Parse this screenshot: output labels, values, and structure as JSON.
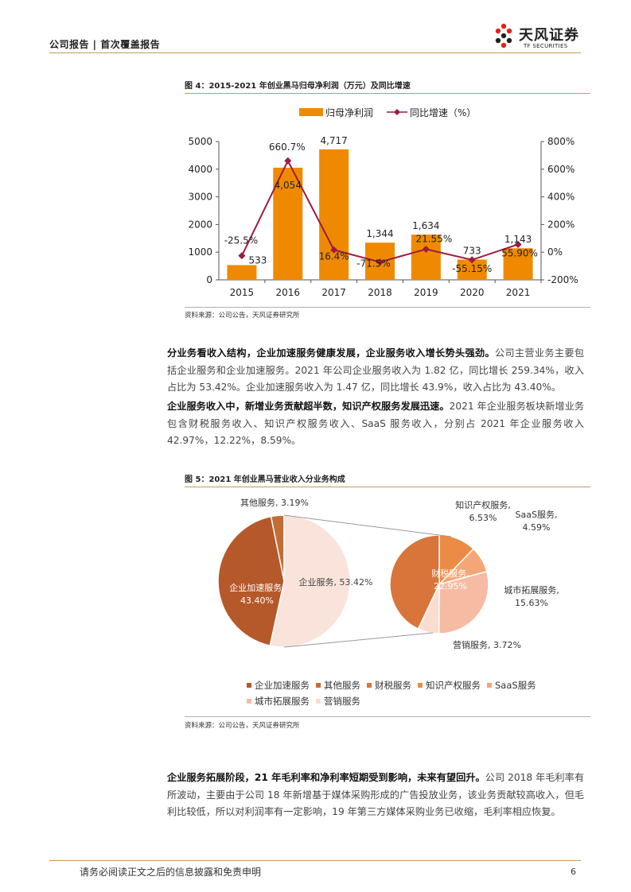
{
  "header": {
    "left": "公司报告 | 首次覆盖报告",
    "logo_cn": "天风证券",
    "logo_en": "TF SECURITIES"
  },
  "figure4": {
    "title": "图 4：2015-2021 年创业黑马归母净利润（万元）及同比增速",
    "source": "资料来源：公司公告，天风证券研究所"
  },
  "para1": {
    "bold": "分业务看收入结构，企业加速服务健康发展，企业服务收入增长势头强劲。",
    "text": "公司主营业务主要包括企业服务和企业加速服务。2021 年公司企业服务收入为 1.82 亿，同比增长 259.34%，收入占比为 53.42%。企业加速服务收入为 1.47 亿，同比增长 43.9%，收入占比为 43.40%。"
  },
  "para2": {
    "bold": "企业服务收入中，新增业务贡献超半数，知识产权服务发展迅速。",
    "text": "2021 年企业服务板块新增业务包含财税服务收入、知识产权服务收入、SaaS 服务收入，分别占 2021 年企业服务收入 42.97%，12.22%，8.59%。"
  },
  "figure5": {
    "title": "图 5：2021 年创业黑马营业收入分业务构成",
    "source": "资料来源：公司公告，天风证券研究所"
  },
  "para3": {
    "bold": "企业服务拓展阶段，21 年毛利率和净利率短期受到影响，未来有望回升。",
    "text": "公司 2018 年毛利率有所波动，主要由于公司 18 年新增基于媒体采购形成的广告投放业务，该业务贡献较高收入，但毛利比较低，所以对利润率有一定影响，19 年第三方媒体采购业务已收缩，毛利率相应恢复。"
  },
  "footer": {
    "text": "请务必阅读正文之后的信息披露和免责申明",
    "page": "6"
  },
  "chart_data": [
    {
      "type": "bar+line",
      "categories": [
        "2015",
        "2016",
        "2017",
        "2018",
        "2019",
        "2020",
        "2021"
      ],
      "bar": {
        "name": "归母净利润",
        "values": [
          533,
          4054,
          4717,
          1344,
          1634,
          733,
          1143
        ],
        "labels": [
          "533",
          "4,054",
          "4,717",
          "1,344",
          "1,634",
          "733",
          "1,143"
        ],
        "color": "#ef8a00"
      },
      "line": {
        "name": "同比增速（%）",
        "values": [
          -25.5,
          660.7,
          16.4,
          -71.5,
          21.55,
          -55.15,
          55.9
        ],
        "labels": [
          "-25.5%",
          "660.7%",
          "16.4%",
          "-71.5%",
          "21.55%",
          "-55.15%",
          "55.90%"
        ],
        "color": "#9c1c3d"
      },
      "y_left": {
        "min": 0,
        "max": 5000,
        "ticks": [
          "0",
          "1000",
          "2000",
          "3000",
          "4000",
          "5000"
        ]
      },
      "y_right": {
        "min": -200,
        "max": 800,
        "ticks": [
          "-200%",
          "0%",
          "200%",
          "400%",
          "600%",
          "800%"
        ]
      },
      "legend": "top-center"
    },
    {
      "type": "pie",
      "main": [
        {
          "name": "企业服务",
          "value": 53.42,
          "label": "企业服务, 53.42%",
          "color": "#fae3db"
        },
        {
          "name": "企业加速服务",
          "value": 43.4,
          "label": "企业加速服务, 43.40%",
          "color": "#b5582a"
        },
        {
          "name": "其他服务",
          "value": 3.19,
          "label": "其他服务, 3.19%",
          "color": "#c36d36"
        }
      ],
      "sub": [
        {
          "name": "财税服务",
          "value": 22.95,
          "label": "财税服务, 22.95%",
          "color": "#d9743a"
        },
        {
          "name": "知识产权服务",
          "value": 6.53,
          "label": "知识产权服务, 6.53%",
          "color": "#ec8b46"
        },
        {
          "name": "SaaS服务",
          "value": 4.59,
          "label": "SaaS服务, 4.59%",
          "color": "#f4a676"
        },
        {
          "name": "城市拓展服务",
          "value": 15.63,
          "label": "城市拓展服务, 15.63%",
          "color": "#f6bca3"
        },
        {
          "name": "营销服务",
          "value": 3.72,
          "label": "营销服务, 3.72%",
          "color": "#fbdcd0"
        }
      ],
      "legend": [
        {
          "name": "企业加速服务",
          "color": "#b5582a"
        },
        {
          "name": "其他服务",
          "color": "#c36d36"
        },
        {
          "name": "财税服务",
          "color": "#d9743a"
        },
        {
          "name": "知识产权服务",
          "color": "#ec8b46"
        },
        {
          "name": "SaaS服务",
          "color": "#f4a676"
        },
        {
          "name": "城市拓展服务",
          "color": "#f6bca3"
        },
        {
          "name": "营销服务",
          "color": "#fbdcd0"
        }
      ]
    }
  ]
}
